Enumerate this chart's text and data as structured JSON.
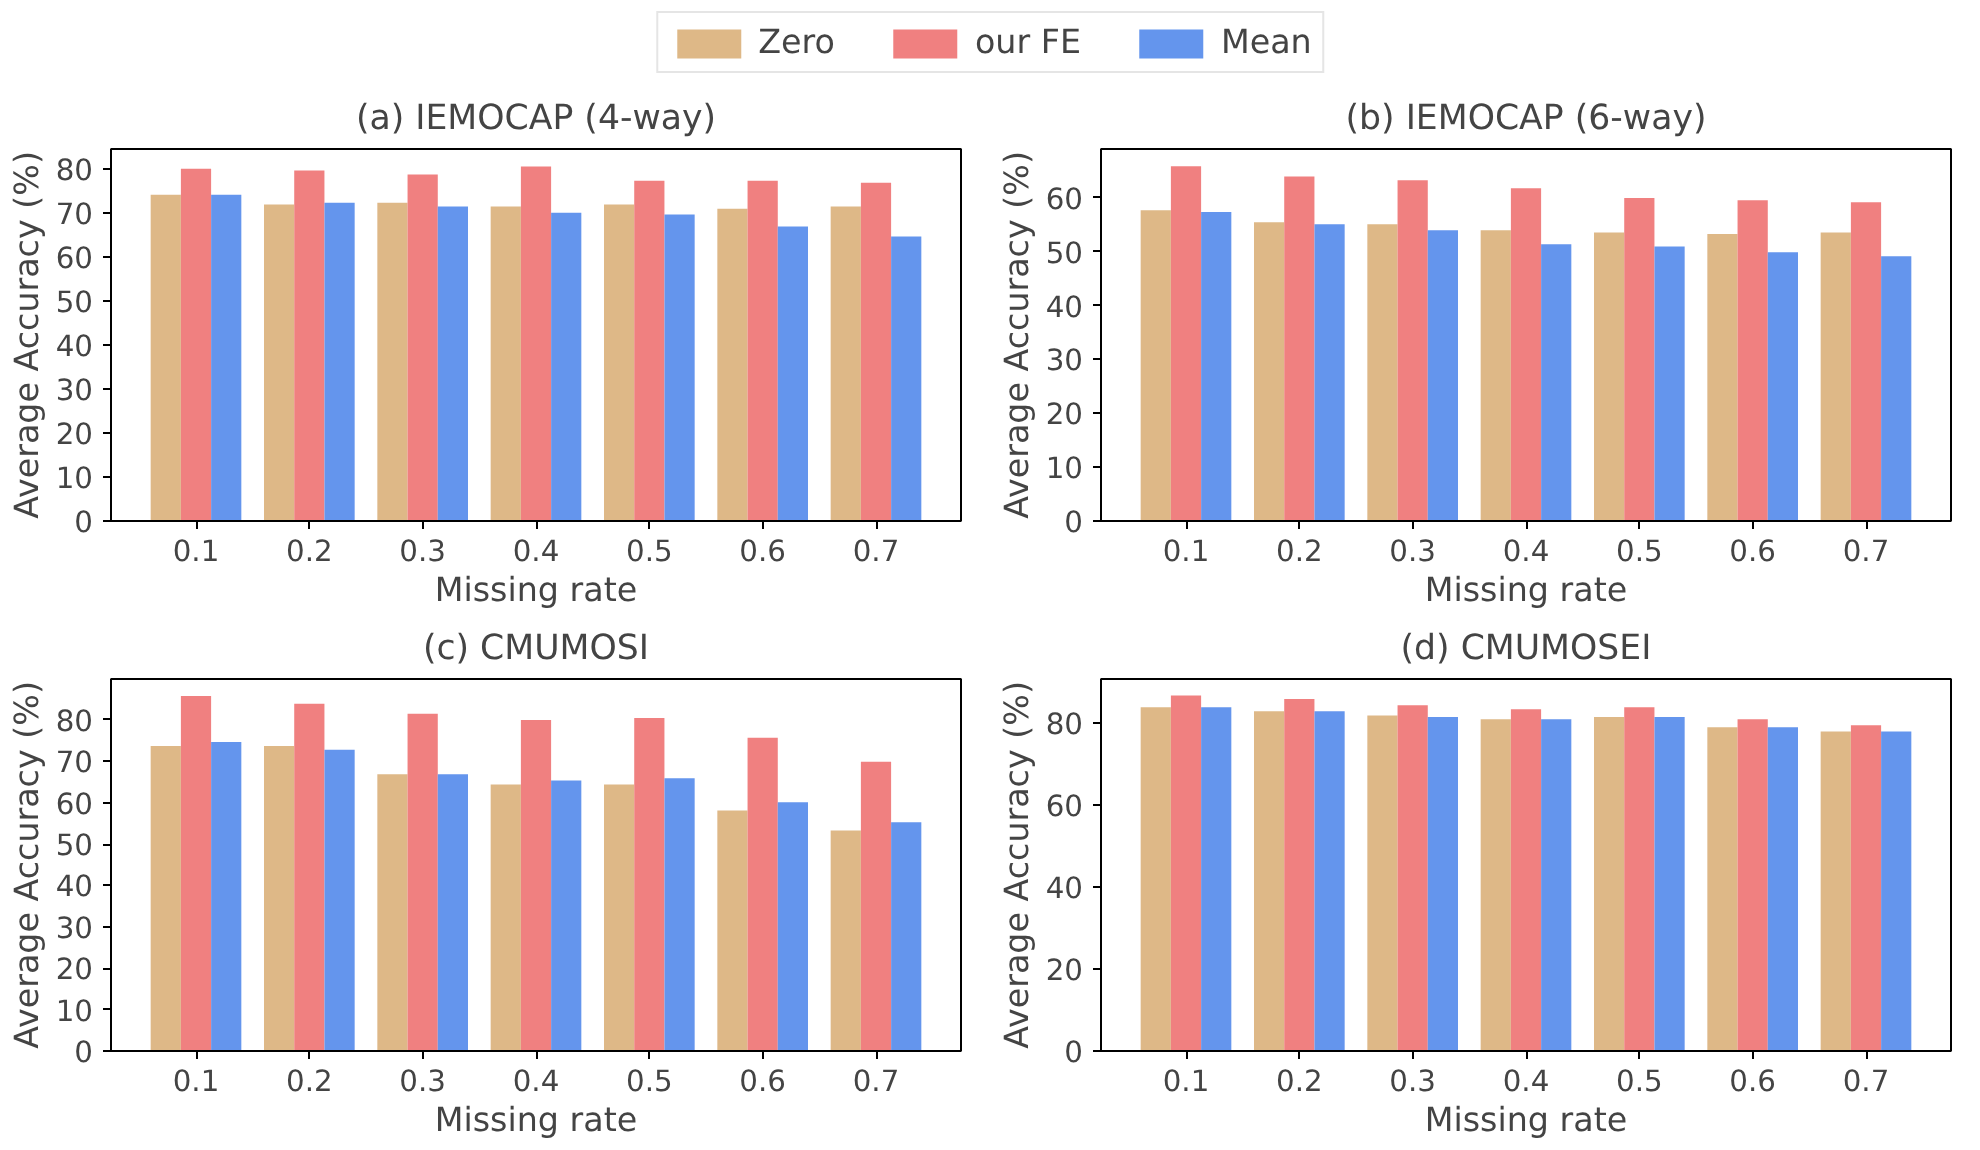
{
  "chart_data": [
    {
      "type": "bar",
      "title": "(a) IEMOCAP (4-way)",
      "xlabel": "Missing rate",
      "ylabel": "Average Accuracy (%)",
      "categories": [
        "0.1",
        "0.2",
        "0.3",
        "0.4",
        "0.5",
        "0.6",
        "0.7"
      ],
      "ylim": [
        0,
        84.6
      ],
      "yticks": [
        0,
        10,
        20,
        30,
        40,
        50,
        60,
        70,
        80
      ],
      "grid": false,
      "legend": "top",
      "series": [
        {
          "name": "Zero",
          "color": "#deb887",
          "values": [
            74.2,
            72.0,
            72.4,
            71.5,
            72.0,
            71.0,
            71.5
          ]
        },
        {
          "name": "our FE",
          "color": "#f08080",
          "values": [
            80.1,
            79.7,
            78.8,
            80.6,
            77.4,
            77.4,
            76.9
          ]
        },
        {
          "name": "Mean",
          "color": "#6495ed",
          "values": [
            74.2,
            72.4,
            71.5,
            70.1,
            69.7,
            67.0,
            64.7
          ]
        }
      ]
    },
    {
      "type": "bar",
      "title": "(b) IEMOCAP (6-way)",
      "xlabel": "Missing rate",
      "ylabel": "Average Accuracy (%)",
      "categories": [
        "0.1",
        "0.2",
        "0.3",
        "0.4",
        "0.5",
        "0.6",
        "0.7"
      ],
      "ylim": [
        0,
        69.1
      ],
      "yticks": [
        0,
        10,
        20,
        30,
        40,
        50,
        60
      ],
      "grid": false,
      "series": [
        {
          "color": "#deb887",
          "values": [
            57.7,
            55.5,
            55.1,
            54.0,
            53.6,
            53.3,
            53.6
          ]
        },
        {
          "color": "#f08080",
          "values": [
            65.9,
            64.0,
            63.3,
            61.8,
            60.0,
            59.6,
            59.2
          ]
        },
        {
          "color": "#6495ed",
          "values": [
            57.4,
            55.1,
            54.0,
            51.4,
            51.0,
            49.9,
            49.2
          ]
        }
      ]
    },
    {
      "type": "bar",
      "title": "(c) CMUMOSI",
      "xlabel": "Missing rate",
      "ylabel": "Average Accuracy (%)",
      "categories": [
        "0.1",
        "0.2",
        "0.3",
        "0.4",
        "0.5",
        "0.6",
        "0.7"
      ],
      "ylim": [
        0,
        89.9
      ],
      "yticks": [
        0,
        10,
        20,
        30,
        40,
        50,
        60,
        70,
        80
      ],
      "grid": false,
      "series": [
        {
          "color": "#deb887",
          "values": [
            73.7,
            73.7,
            66.9,
            64.4,
            64.4,
            58.1,
            53.3
          ]
        },
        {
          "color": "#f08080",
          "values": [
            85.8,
            83.9,
            81.5,
            80.0,
            80.5,
            75.7,
            69.9
          ]
        },
        {
          "color": "#6495ed",
          "values": [
            74.7,
            72.8,
            66.9,
            65.4,
            65.9,
            60.1,
            55.3
          ]
        }
      ]
    },
    {
      "type": "bar",
      "title": "(d) CMUMOSEI",
      "xlabel": "Missing rate",
      "ylabel": "Average Accuracy (%)",
      "categories": [
        "0.1",
        "0.2",
        "0.3",
        "0.4",
        "0.5",
        "0.6",
        "0.7"
      ],
      "ylim": [
        0,
        90.8
      ],
      "yticks": [
        0,
        20,
        40,
        60,
        80
      ],
      "grid": false,
      "series": [
        {
          "color": "#deb887",
          "values": [
            83.9,
            82.9,
            81.9,
            81.0,
            81.5,
            79.0,
            78.0
          ]
        },
        {
          "color": "#f08080",
          "values": [
            86.8,
            85.9,
            84.4,
            83.4,
            83.9,
            81.0,
            79.5
          ]
        },
        {
          "color": "#6495ed",
          "values": [
            83.9,
            82.9,
            81.5,
            81.0,
            81.5,
            79.0,
            78.0
          ]
        }
      ]
    }
  ]
}
